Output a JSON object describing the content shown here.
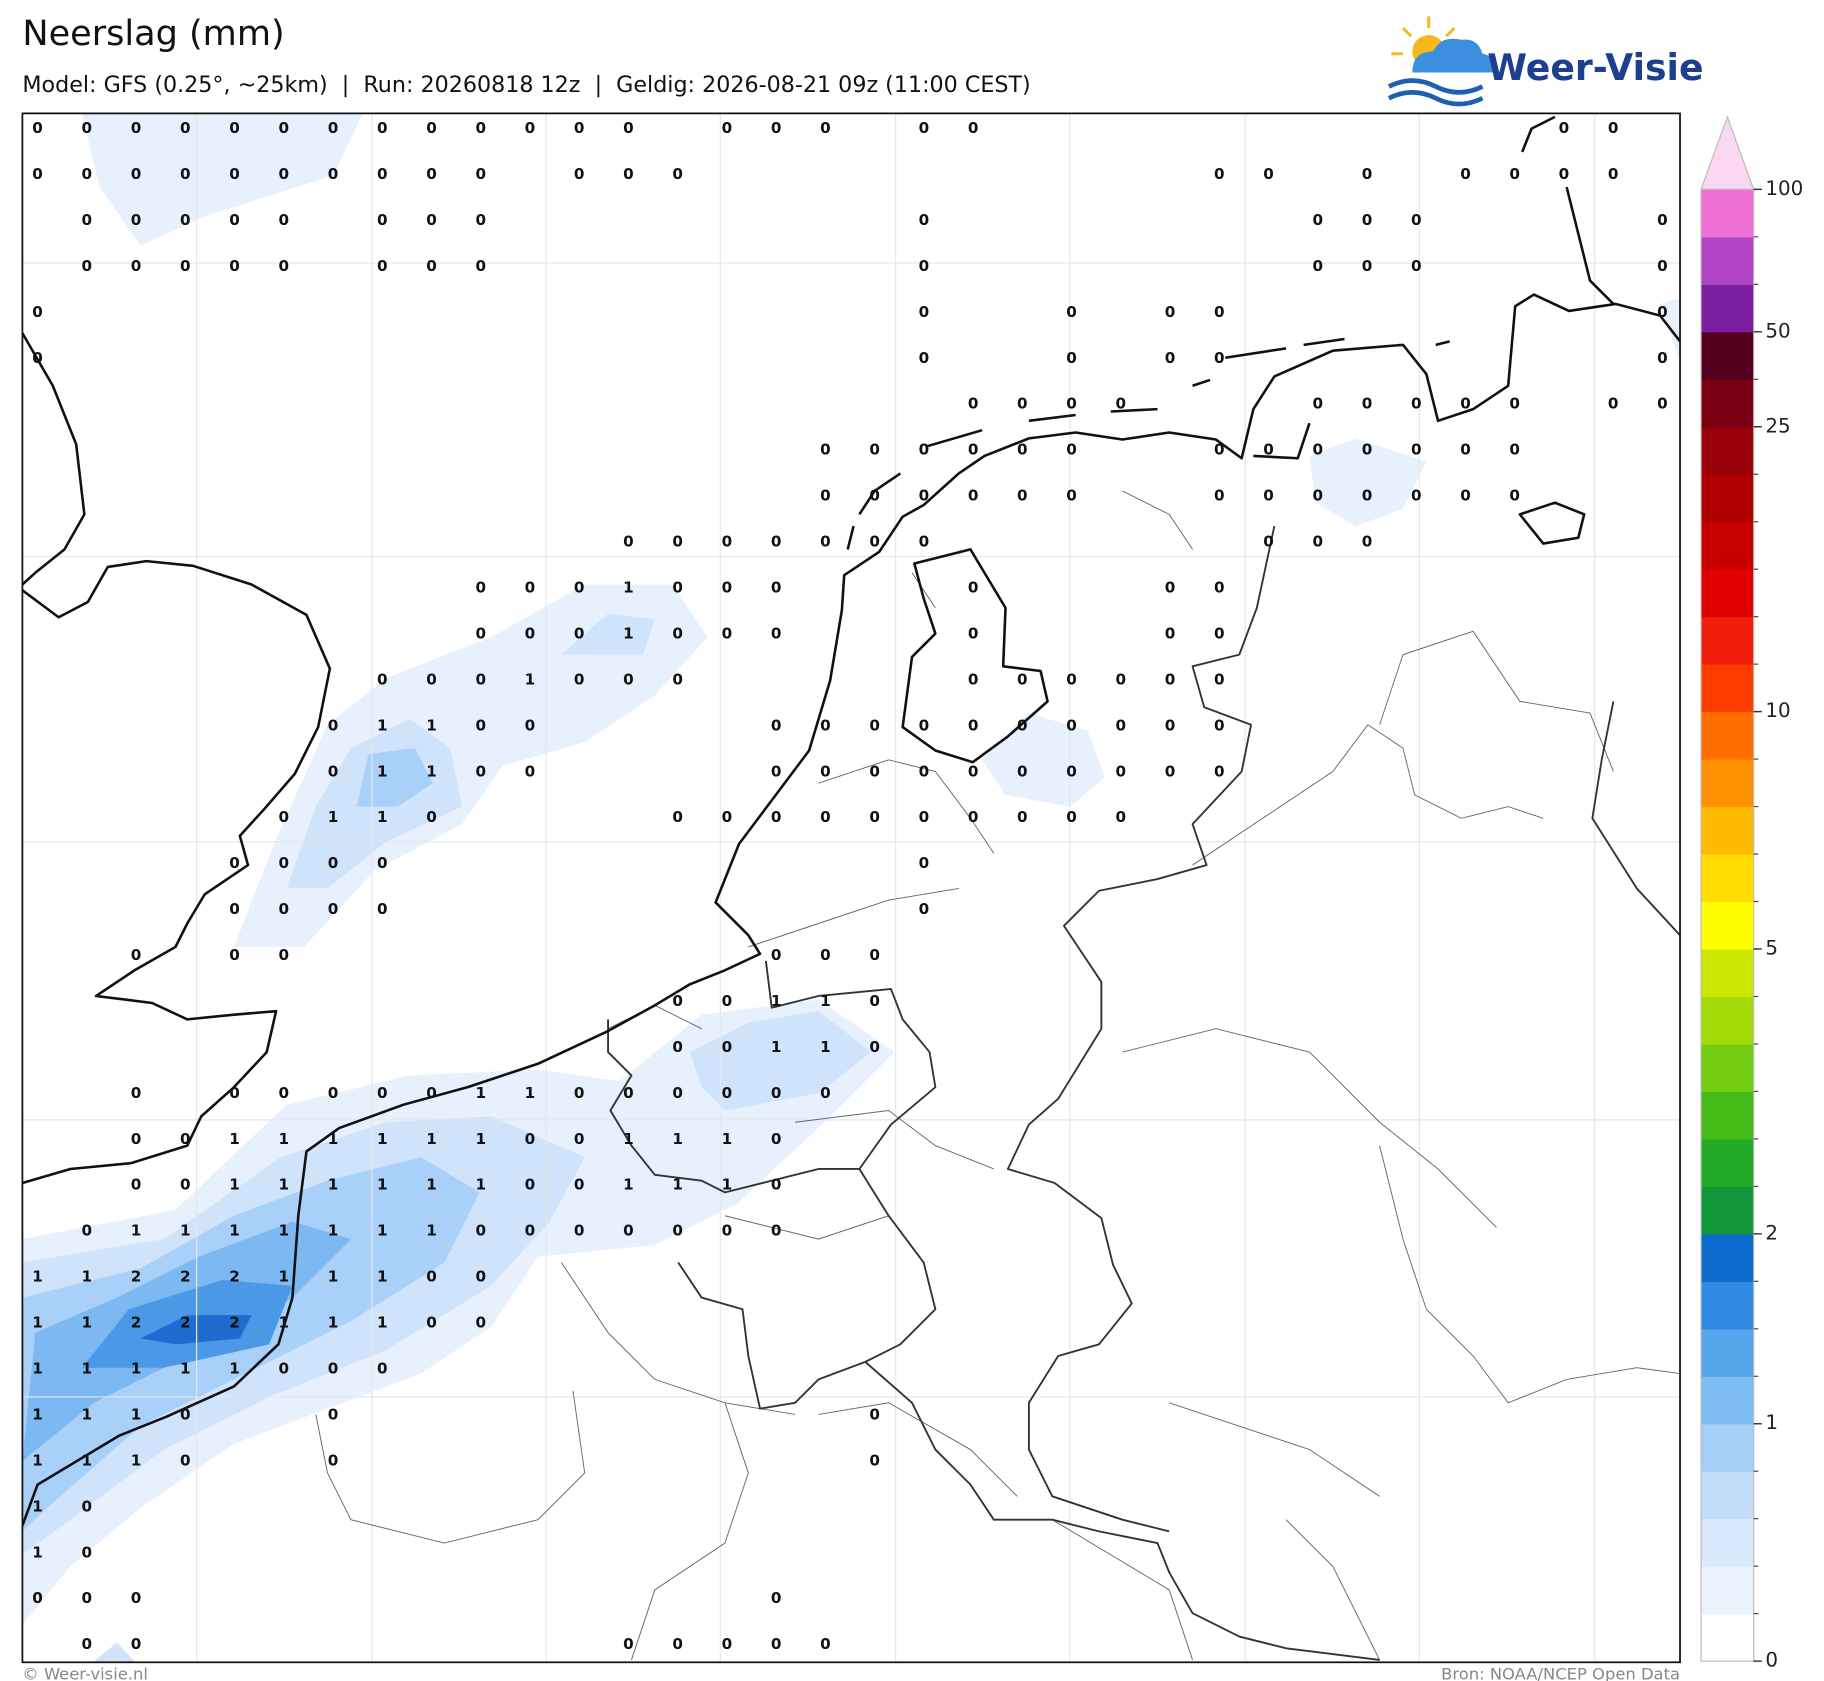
{
  "header": {
    "title": "Neerslag (mm)",
    "subtitle": "Model: GFS (0.25°, ~25km)  |  Run: 20260818 12z  |  Geldig: 2026-08-21 09z (11:00 CEST)"
  },
  "logo": {
    "text": "Weer-Visie"
  },
  "map": {
    "values": [
      [
        0,
        0,
        0,
        0,
        0,
        0,
        0,
        0,
        0,
        0,
        0,
        0,
        0,
        null,
        0,
        0,
        0,
        null,
        0,
        0,
        null,
        null,
        null,
        null,
        null,
        null,
        null,
        null,
        null,
        null,
        null,
        0,
        0,
        null
      ],
      [
        0,
        0,
        0,
        0,
        0,
        0,
        0,
        0,
        0,
        0,
        null,
        0,
        0,
        0,
        null,
        null,
        null,
        null,
        null,
        null,
        null,
        null,
        null,
        null,
        0,
        0,
        null,
        0,
        null,
        0,
        0,
        0,
        0,
        null
      ],
      [
        null,
        0,
        0,
        0,
        0,
        0,
        null,
        0,
        0,
        0,
        null,
        null,
        null,
        null,
        null,
        null,
        null,
        null,
        0,
        null,
        null,
        null,
        null,
        null,
        null,
        null,
        0,
        0,
        0,
        null,
        null,
        null,
        null,
        0
      ],
      [
        null,
        0,
        0,
        0,
        0,
        0,
        null,
        0,
        0,
        0,
        null,
        null,
        null,
        null,
        null,
        null,
        null,
        null,
        0,
        null,
        null,
        null,
        null,
        null,
        null,
        null,
        0,
        0,
        0,
        null,
        null,
        null,
        null,
        0
      ],
      [
        0,
        null,
        null,
        null,
        null,
        null,
        null,
        null,
        null,
        null,
        null,
        null,
        null,
        null,
        null,
        null,
        null,
        null,
        0,
        null,
        null,
        0,
        null,
        0,
        0,
        null,
        null,
        null,
        null,
        null,
        null,
        null,
        null,
        0
      ],
      [
        0,
        null,
        null,
        null,
        null,
        null,
        null,
        null,
        null,
        null,
        null,
        null,
        null,
        null,
        null,
        null,
        null,
        null,
        0,
        null,
        null,
        0,
        null,
        0,
        0,
        null,
        null,
        null,
        null,
        null,
        null,
        null,
        null,
        0
      ],
      [
        null,
        null,
        null,
        null,
        null,
        null,
        null,
        null,
        null,
        null,
        null,
        null,
        null,
        null,
        null,
        null,
        null,
        null,
        null,
        0,
        0,
        0,
        0,
        null,
        null,
        null,
        0,
        0,
        0,
        0,
        0,
        null,
        0,
        0
      ],
      [
        null,
        null,
        null,
        null,
        null,
        null,
        null,
        null,
        null,
        null,
        null,
        null,
        null,
        null,
        null,
        null,
        0,
        0,
        0,
        0,
        0,
        0,
        null,
        null,
        0,
        0,
        0,
        0,
        0,
        0,
        0,
        null,
        null,
        null
      ],
      [
        null,
        null,
        null,
        null,
        null,
        null,
        null,
        null,
        null,
        null,
        null,
        null,
        null,
        null,
        null,
        null,
        0,
        0,
        0,
        0,
        0,
        0,
        null,
        null,
        0,
        0,
        0,
        0,
        0,
        0,
        0,
        null,
        null,
        null
      ],
      [
        null,
        null,
        null,
        null,
        null,
        null,
        null,
        null,
        null,
        null,
        null,
        null,
        0,
        0,
        0,
        0,
        0,
        0,
        0,
        null,
        null,
        null,
        null,
        null,
        null,
        0,
        0,
        0,
        null,
        null,
        null,
        null,
        null,
        null
      ],
      [
        null,
        null,
        null,
        null,
        null,
        null,
        null,
        null,
        null,
        0,
        0,
        0,
        1,
        0,
        0,
        0,
        null,
        null,
        null,
        0,
        null,
        null,
        null,
        0,
        0,
        null,
        null,
        null,
        null,
        null,
        null,
        null,
        null,
        null
      ],
      [
        null,
        null,
        null,
        null,
        null,
        null,
        null,
        null,
        null,
        0,
        0,
        0,
        1,
        0,
        0,
        0,
        null,
        null,
        null,
        0,
        null,
        null,
        null,
        0,
        0,
        null,
        null,
        null,
        null,
        null,
        null,
        null,
        null,
        null
      ],
      [
        null,
        null,
        null,
        null,
        null,
        null,
        null,
        0,
        0,
        0,
        1,
        0,
        0,
        0,
        null,
        null,
        null,
        null,
        null,
        0,
        0,
        0,
        0,
        0,
        0,
        null,
        null,
        null,
        null,
        null,
        null,
        null,
        null,
        null
      ],
      [
        null,
        null,
        null,
        null,
        null,
        null,
        0,
        1,
        1,
        0,
        0,
        null,
        null,
        null,
        null,
        0,
        0,
        0,
        0,
        0,
        0,
        0,
        0,
        0,
        0,
        null,
        null,
        null,
        null,
        null,
        null,
        null,
        null,
        null
      ],
      [
        null,
        null,
        null,
        null,
        null,
        null,
        0,
        1,
        1,
        0,
        0,
        null,
        null,
        null,
        null,
        0,
        0,
        0,
        0,
        0,
        0,
        0,
        0,
        0,
        0,
        null,
        null,
        null,
        null,
        null,
        null,
        null,
        null,
        null
      ],
      [
        null,
        null,
        null,
        null,
        null,
        0,
        1,
        1,
        0,
        null,
        null,
        null,
        null,
        0,
        0,
        0,
        0,
        0,
        0,
        0,
        0,
        0,
        0,
        null,
        null,
        null,
        null,
        null,
        null,
        null,
        null,
        null,
        null,
        null
      ],
      [
        null,
        null,
        null,
        null,
        0,
        0,
        0,
        0,
        null,
        null,
        null,
        null,
        null,
        null,
        null,
        null,
        null,
        null,
        0,
        null,
        null,
        null,
        null,
        null,
        null,
        null,
        null,
        null,
        null,
        null,
        null,
        null,
        null,
        null
      ],
      [
        null,
        null,
        null,
        null,
        0,
        0,
        0,
        0,
        null,
        null,
        null,
        null,
        null,
        null,
        null,
        null,
        null,
        null,
        0,
        null,
        null,
        null,
        null,
        null,
        null,
        null,
        null,
        null,
        null,
        null,
        null,
        null,
        null,
        null
      ],
      [
        null,
        null,
        0,
        null,
        0,
        0,
        null,
        null,
        null,
        null,
        null,
        null,
        null,
        null,
        null,
        0,
        0,
        0,
        null,
        null,
        null,
        null,
        null,
        null,
        null,
        null,
        null,
        null,
        null,
        null,
        null,
        null,
        null,
        null
      ],
      [
        null,
        null,
        null,
        null,
        null,
        null,
        null,
        null,
        null,
        null,
        null,
        null,
        null,
        0,
        0,
        1,
        1,
        0,
        null,
        null,
        null,
        null,
        null,
        null,
        null,
        null,
        null,
        null,
        null,
        null,
        null,
        null,
        null,
        null
      ],
      [
        null,
        null,
        null,
        null,
        null,
        null,
        null,
        null,
        null,
        null,
        null,
        null,
        null,
        0,
        0,
        1,
        1,
        0,
        null,
        null,
        null,
        null,
        null,
        null,
        null,
        null,
        null,
        null,
        null,
        null,
        null,
        null,
        null,
        null
      ],
      [
        null,
        null,
        0,
        null,
        0,
        0,
        0,
        0,
        0,
        1,
        1,
        0,
        0,
        0,
        0,
        0,
        0,
        null,
        null,
        null,
        null,
        null,
        null,
        null,
        null,
        null,
        null,
        null,
        null,
        null,
        null,
        null,
        null,
        null
      ],
      [
        null,
        null,
        0,
        0,
        1,
        1,
        1,
        1,
        1,
        1,
        0,
        0,
        1,
        1,
        1,
        0,
        null,
        null,
        null,
        null,
        null,
        null,
        null,
        null,
        null,
        null,
        null,
        null,
        null,
        null,
        null,
        null,
        null,
        null
      ],
      [
        null,
        null,
        0,
        0,
        1,
        1,
        1,
        1,
        1,
        1,
        0,
        0,
        1,
        1,
        1,
        0,
        null,
        null,
        null,
        null,
        null,
        null,
        null,
        null,
        null,
        null,
        null,
        null,
        null,
        null,
        null,
        null,
        null,
        null
      ],
      [
        null,
        0,
        1,
        1,
        1,
        1,
        1,
        1,
        1,
        0,
        0,
        0,
        0,
        0,
        0,
        0,
        null,
        null,
        null,
        null,
        null,
        null,
        null,
        null,
        null,
        null,
        null,
        null,
        null,
        null,
        null,
        null,
        null,
        null
      ],
      [
        1,
        1,
        2,
        2,
        2,
        1,
        1,
        1,
        0,
        0,
        null,
        null,
        null,
        null,
        null,
        null,
        null,
        null,
        null,
        null,
        null,
        null,
        null,
        null,
        null,
        null,
        null,
        null,
        null,
        null,
        null,
        null,
        null,
        null
      ],
      [
        1,
        1,
        2,
        2,
        2,
        1,
        1,
        1,
        0,
        0,
        null,
        null,
        null,
        null,
        null,
        null,
        null,
        null,
        null,
        null,
        null,
        null,
        null,
        null,
        null,
        null,
        null,
        null,
        null,
        null,
        null,
        null,
        null,
        null
      ],
      [
        1,
        1,
        1,
        1,
        1,
        0,
        0,
        0,
        null,
        null,
        null,
        null,
        null,
        null,
        null,
        null,
        null,
        null,
        null,
        null,
        null,
        null,
        null,
        null,
        null,
        null,
        null,
        null,
        null,
        null,
        null,
        null,
        null,
        null
      ],
      [
        1,
        1,
        1,
        0,
        null,
        null,
        0,
        null,
        null,
        null,
        null,
        null,
        null,
        null,
        null,
        null,
        null,
        0,
        null,
        null,
        null,
        null,
        null,
        null,
        null,
        null,
        null,
        null,
        null,
        null,
        null,
        null,
        null,
        null
      ],
      [
        1,
        1,
        1,
        0,
        null,
        null,
        0,
        null,
        null,
        null,
        null,
        null,
        null,
        null,
        null,
        null,
        null,
        0,
        null,
        null,
        null,
        null,
        null,
        null,
        null,
        null,
        null,
        null,
        null,
        null,
        null,
        null,
        null,
        null
      ],
      [
        1,
        0,
        null,
        null,
        null,
        null,
        null,
        null,
        null,
        null,
        null,
        null,
        null,
        null,
        null,
        null,
        null,
        null,
        null,
        null,
        null,
        null,
        null,
        null,
        null,
        null,
        null,
        null,
        null,
        null,
        null,
        null,
        null,
        null
      ],
      [
        1,
        0,
        null,
        null,
        null,
        null,
        null,
        null,
        null,
        null,
        null,
        null,
        null,
        null,
        null,
        null,
        null,
        null,
        null,
        null,
        null,
        null,
        null,
        null,
        null,
        null,
        null,
        null,
        null,
        null,
        null,
        null,
        null,
        null
      ],
      [
        0,
        0,
        0,
        null,
        null,
        null,
        null,
        null,
        null,
        null,
        null,
        null,
        null,
        null,
        null,
        0,
        null,
        null,
        null,
        null,
        null,
        null,
        null,
        null,
        null,
        null,
        null,
        null,
        null,
        null,
        null,
        null,
        null,
        null
      ],
      [
        null,
        0,
        0,
        null,
        null,
        null,
        null,
        null,
        null,
        null,
        null,
        null,
        0,
        0,
        0,
        0,
        0,
        null,
        null,
        null,
        null,
        null,
        null,
        null,
        null,
        null,
        null,
        null,
        null,
        null,
        null,
        null,
        null,
        null
      ]
    ]
  },
  "legend": {
    "labels": [
      "0",
      "1",
      "2",
      "5",
      "10",
      "25",
      "50",
      "100"
    ],
    "colors": [
      "#ffffff",
      "#eaf3fd",
      "#d9eafc",
      "#c2ddfa",
      "#a6cff8",
      "#7ebcf3",
      "#55a6eb",
      "#2e8ae2",
      "#0e6acd",
      "#12963a",
      "#22aa26",
      "#45bb18",
      "#72cc10",
      "#a2db08",
      "#cde800",
      "#ffff00",
      "#ffdd00",
      "#ffbb00",
      "#ff9200",
      "#ff6f00",
      "#ff3c00",
      "#f01e0a",
      "#e00000",
      "#c80000",
      "#b00000",
      "#990008",
      "#7c0014",
      "#560020",
      "#7a1fa0",
      "#b144c4",
      "#ef70d7"
    ],
    "extend_color": "#fbd8f1"
  },
  "footer": {
    "left": "© Weer-visie.nl",
    "right": "Bron: NOAA/NCEP Open Data"
  }
}
